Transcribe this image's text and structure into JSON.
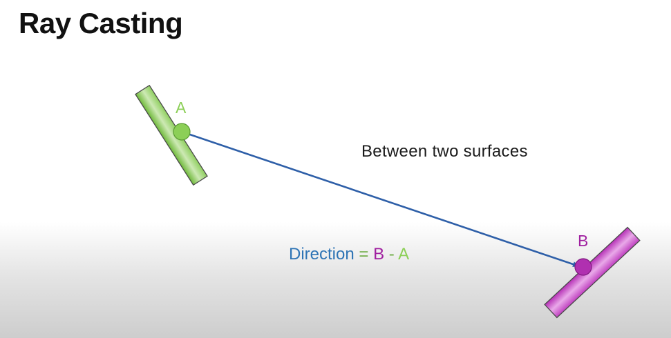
{
  "slide": {
    "title": "Ray Casting"
  },
  "diagram": {
    "caption": "Between two surfaces",
    "point_a_label": "A",
    "point_b_label": "B",
    "equation": {
      "term_direction": "Direction",
      "equals": "=",
      "term_b": "B",
      "minus": "-",
      "term_a": "A"
    }
  },
  "colors": {
    "surface_a": "#8ccf57",
    "surface_b": "#b030b0",
    "ray": "#2e5fa8",
    "direction_text": "#2e74b5"
  }
}
